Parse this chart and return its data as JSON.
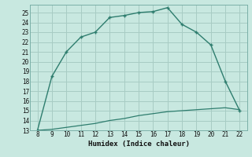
{
  "title": "",
  "xlabel": "Humidex (Indice chaleur)",
  "bg_color": "#c8e8e0",
  "line_color": "#2e7d6e",
  "grid_color": "#a8ccc4",
  "x_main": [
    8,
    9,
    10,
    11,
    12,
    13,
    14,
    15,
    16,
    17,
    18,
    19,
    20,
    21,
    22
  ],
  "y_main": [
    13,
    18.5,
    21,
    22.5,
    23,
    24.5,
    24.7,
    25.0,
    25.1,
    25.5,
    23.8,
    23.0,
    21.7,
    18.0,
    15.0
  ],
  "x_lower": [
    8,
    9,
    10,
    11,
    12,
    13,
    14,
    15,
    16,
    17,
    18,
    19,
    20,
    21,
    22
  ],
  "y_lower": [
    13.0,
    13.1,
    13.3,
    13.5,
    13.7,
    14.0,
    14.2,
    14.5,
    14.7,
    14.9,
    15.0,
    15.1,
    15.2,
    15.3,
    15.1
  ],
  "xlim": [
    7.5,
    22.5
  ],
  "ylim": [
    13,
    25.8
  ],
  "xticks": [
    8,
    9,
    10,
    11,
    12,
    13,
    14,
    15,
    16,
    17,
    18,
    19,
    20,
    21,
    22
  ],
  "yticks": [
    13,
    14,
    15,
    16,
    17,
    18,
    19,
    20,
    21,
    22,
    23,
    24,
    25
  ]
}
